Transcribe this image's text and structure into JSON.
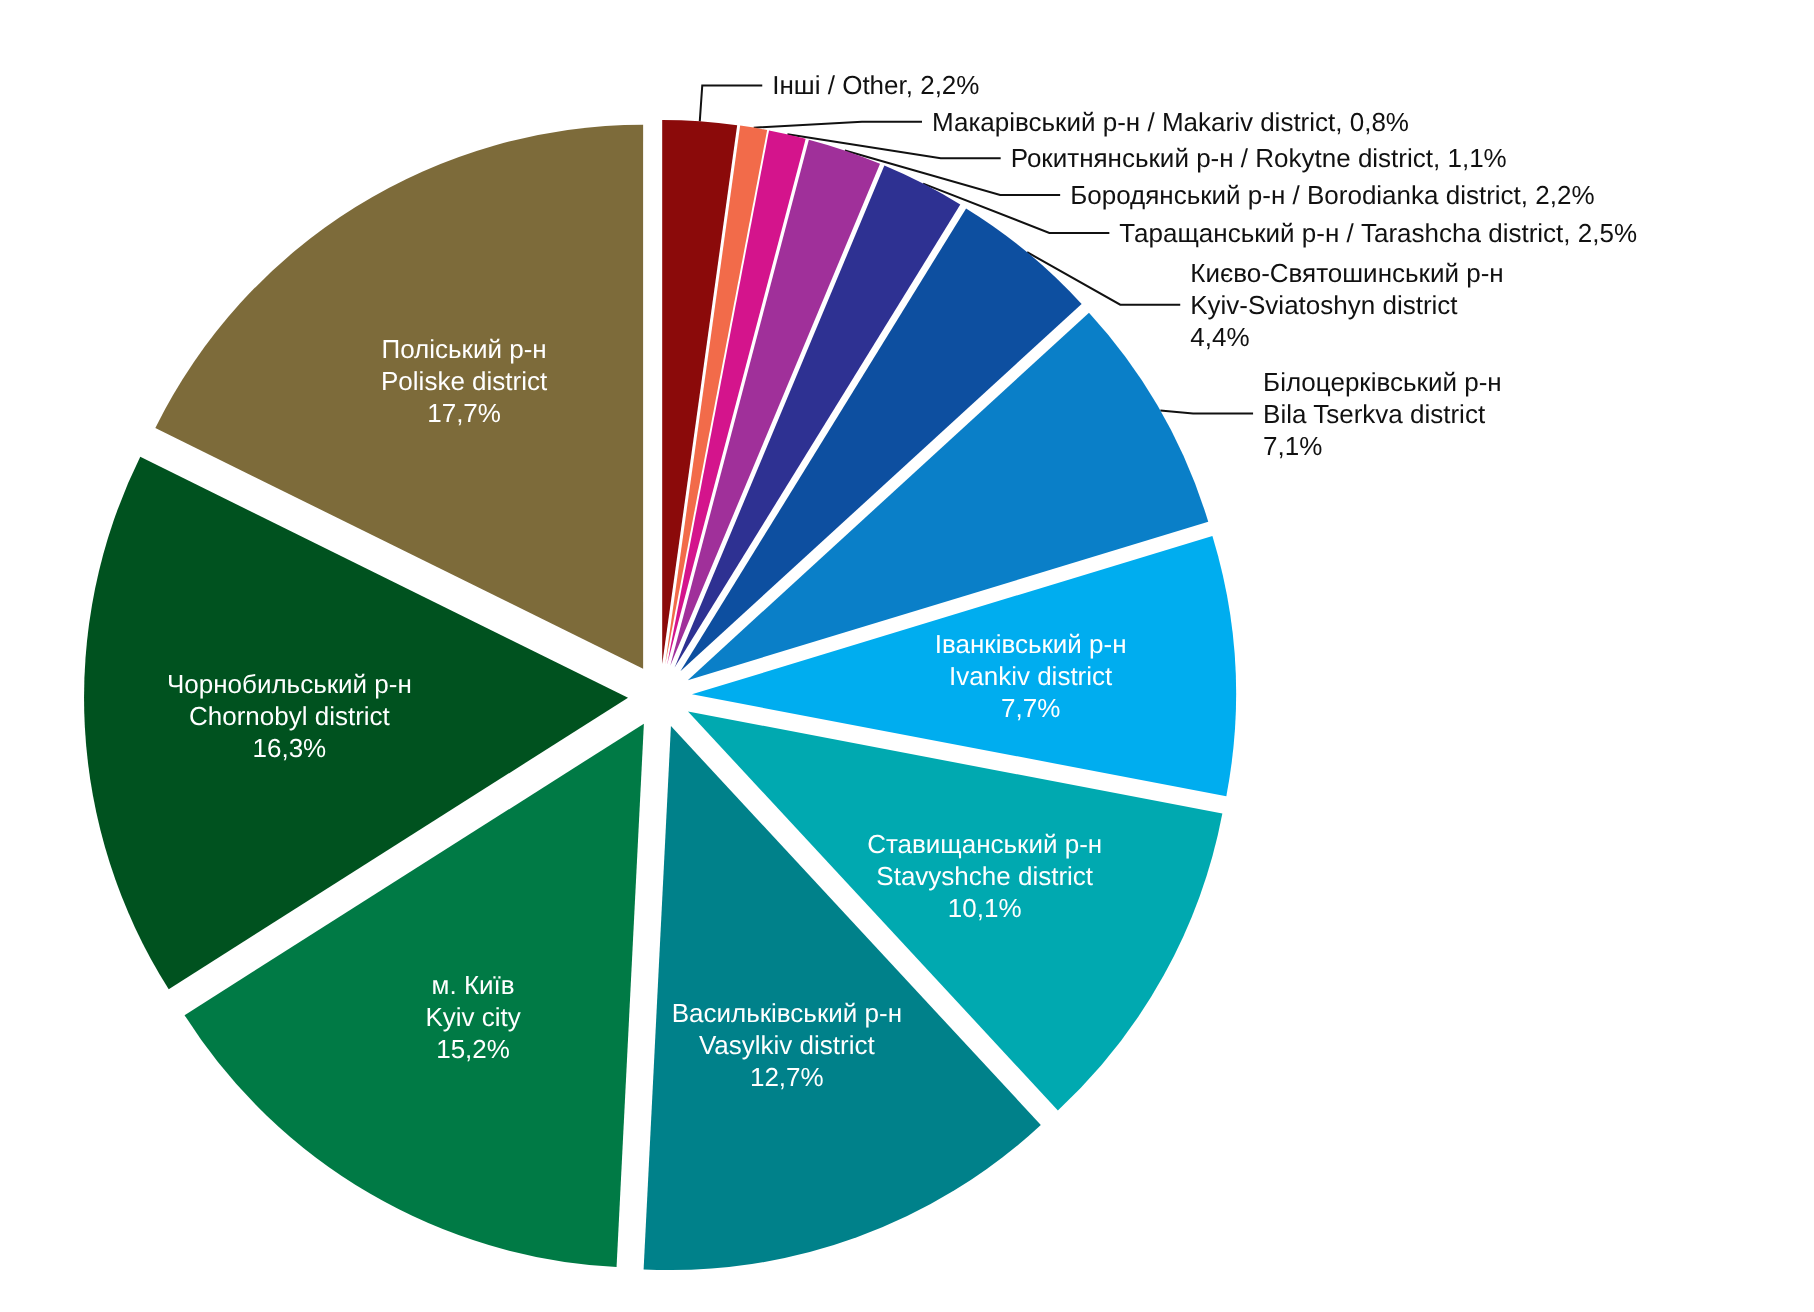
{
  "chart_data": {
    "type": "pie",
    "categories": [
      "Інші / Other",
      "Макарівський р-н / Makariv district",
      "Рокитнянський р-н / Rokytne district",
      "Бородянський р-н / Borodianka district",
      "Таращанський р-н / Tarashcha district",
      "Києво-Святошинський р-н\nKyiv-Sviatoshyn district",
      "Білоцерківський р-н\nBila Tserkva district",
      "Іванківський р-н\nIvankiv district",
      "Ставищанський р-н\nStavyshche district",
      "Васильківський р-н\nVasylkiv district",
      "м. Київ\nKyiv city",
      "Чорнобильський р-н\nChornobyl district",
      "Поліський р-н\nPoliske district"
    ],
    "values": [
      2.2,
      0.8,
      1.1,
      2.2,
      2.5,
      4.4,
      7.1,
      7.7,
      10.1,
      12.7,
      15.2,
      16.3,
      17.7
    ],
    "value_labels": [
      "2,2%",
      "0,8%",
      "1,1%",
      "2,2%",
      "2,5%",
      "4,4%",
      "7,1%",
      "7,7%",
      "10,1%",
      "12,7%",
      "15,2%",
      "16,3%",
      "17,7%"
    ],
    "colors": [
      "#8b0a0a",
      "#f26b4a",
      "#d4148c",
      "#a0309a",
      "#2e3192",
      "#0d4fa0",
      "#0a7fc8",
      "#00adef",
      "#00a9b0",
      "#00818a",
      "#007a45",
      "#00521f",
      "#7d6b3a"
    ],
    "legend": false
  }
}
